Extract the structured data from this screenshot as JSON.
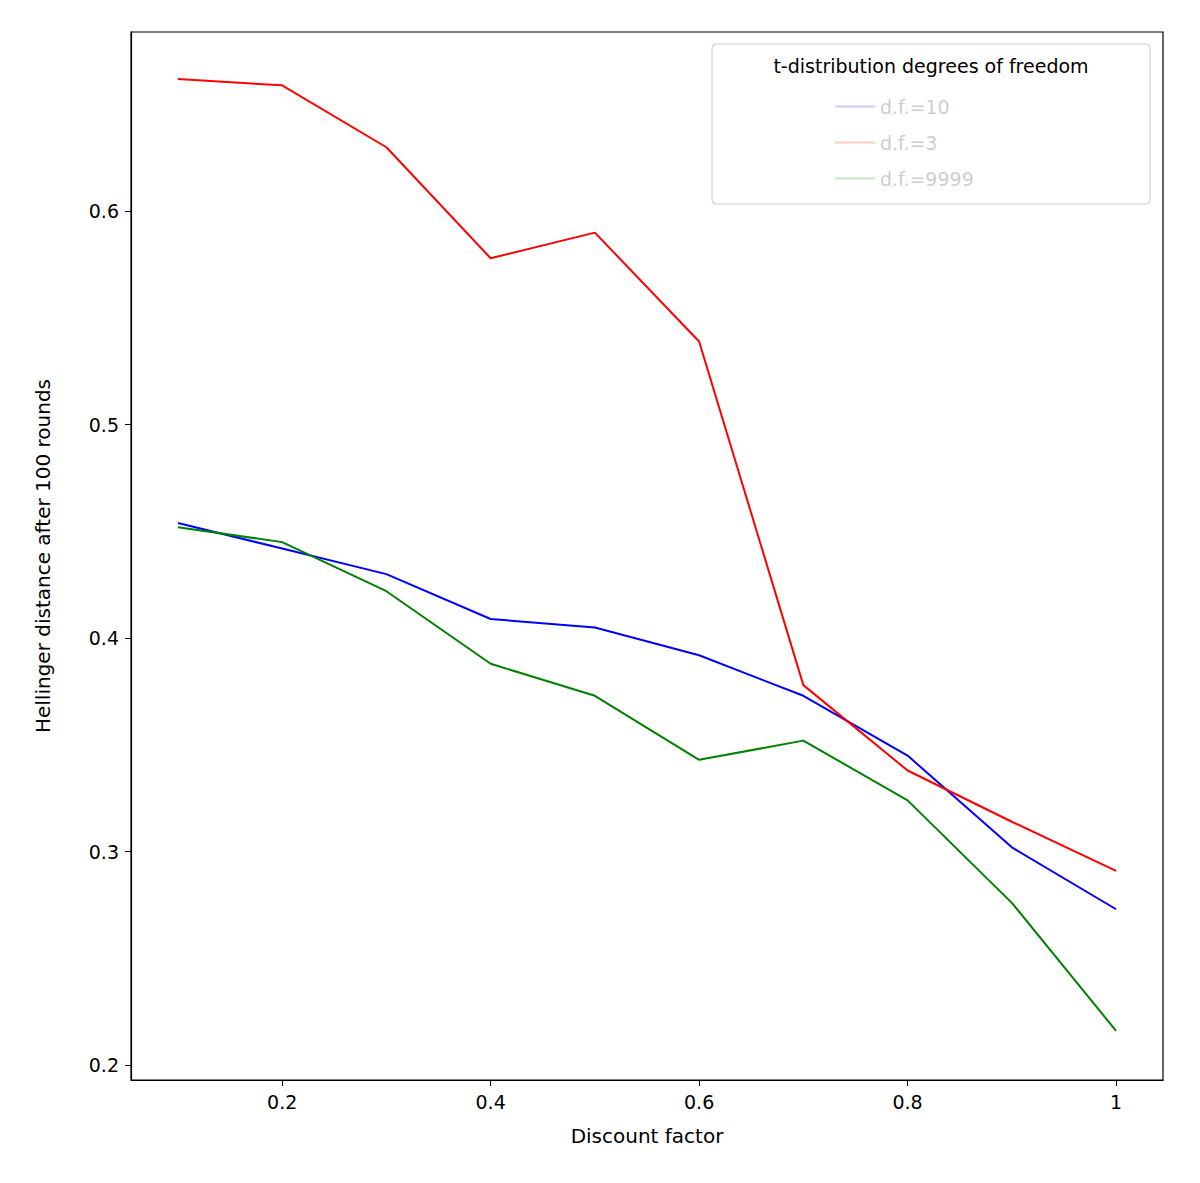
{
  "chart_data": {
    "type": "line",
    "x_label": "Discount factor",
    "y_label": "Hellinger distance after 100 rounds",
    "legend_title": "t-distribution degrees of freedom",
    "legend": "upper right",
    "grid": false,
    "x": [
      0.1,
      0.2,
      0.3,
      0.4,
      0.5,
      0.6,
      0.7,
      0.8,
      0.9,
      1.0
    ],
    "xlim": [
      0.055,
      1.045
    ],
    "xticks": [
      0.2,
      0.4,
      0.6,
      0.8,
      1.0
    ],
    "ylim": [
      0.193,
      0.684
    ],
    "yticks": [
      0.2,
      0.3,
      0.4,
      0.5,
      0.6
    ],
    "series": [
      {
        "name": "d.f.=10",
        "color": "#0000ff",
        "values": [
          0.454,
          0.442,
          0.43,
          0.409,
          0.405,
          0.392,
          0.373,
          0.345,
          0.302,
          0.273
        ]
      },
      {
        "name": "d.f.=3",
        "color": "#ff0000",
        "values": [
          0.662,
          0.659,
          0.63,
          0.578,
          0.59,
          0.539,
          0.378,
          0.338,
          0.314,
          0.291
        ]
      },
      {
        "name": "d.f.=9999",
        "color": "#008000",
        "values": [
          0.452,
          0.445,
          0.422,
          0.388,
          0.373,
          0.343,
          0.352,
          0.324,
          0.276,
          0.216
        ]
      }
    ]
  }
}
